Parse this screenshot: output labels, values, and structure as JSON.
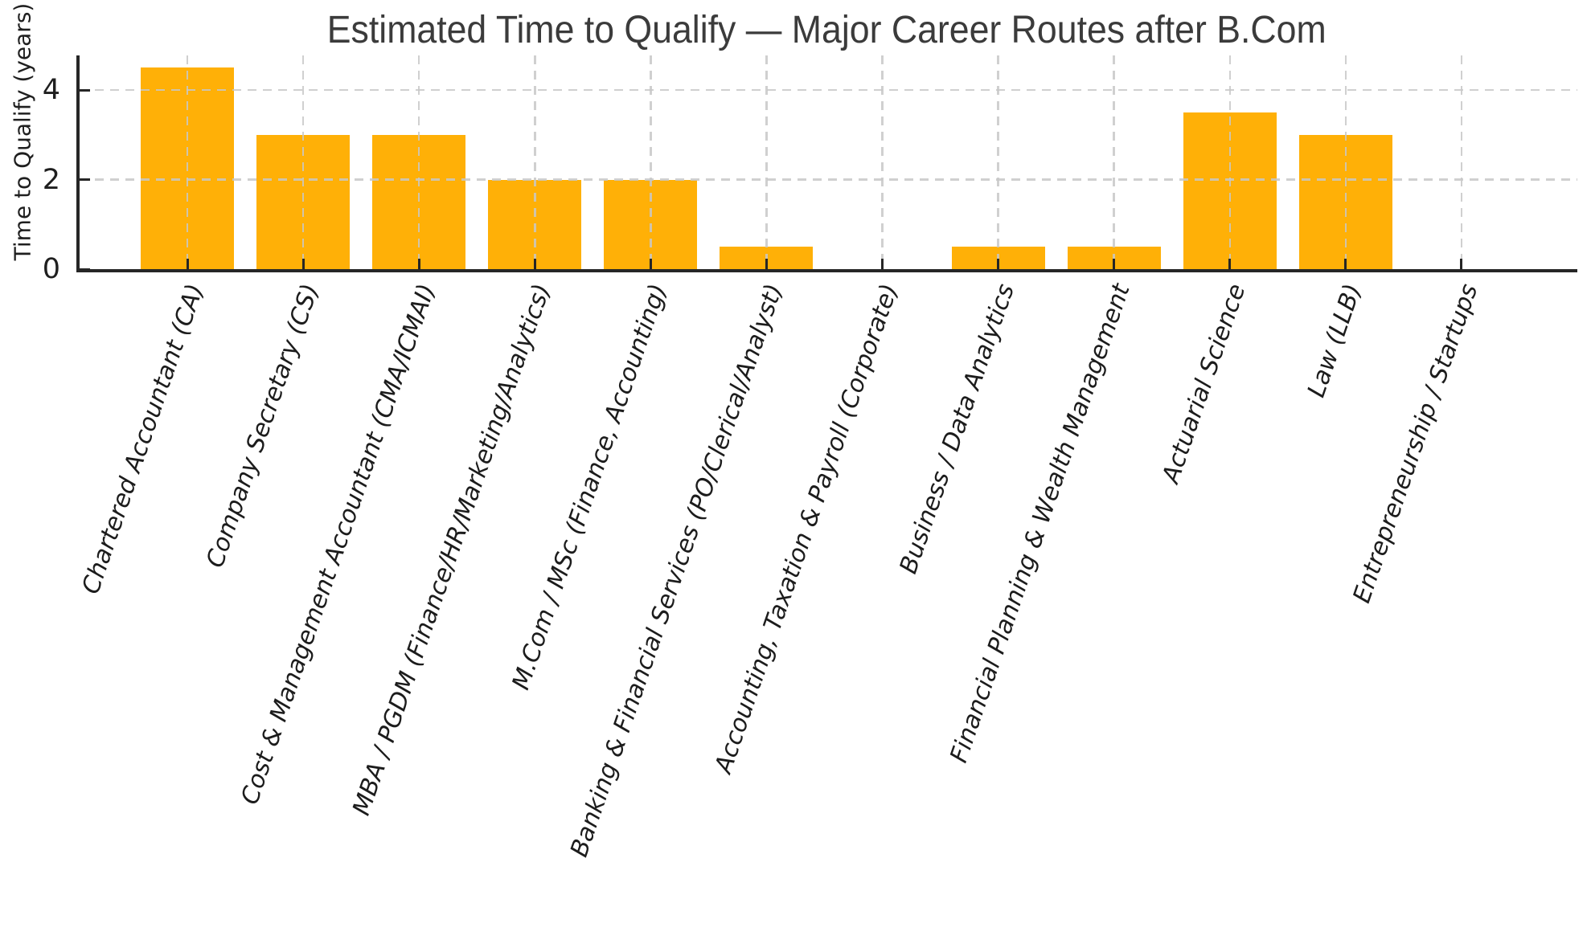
{
  "chart_data": {
    "type": "bar",
    "title": "Estimated Time to Qualify — Major Career Routes after B.Com",
    "ylabel": "Time to Qualify (years)",
    "xlabel": "",
    "categories": [
      "Chartered Accountant (CA)",
      "Company Secretary (CS)",
      "Cost & Management Accountant (CMA/ICMAI)",
      "MBA / PGDM (Finance/HR/Marketing/Analytics)",
      "M.Com / MSc (Finance, Accounting)",
      "Banking & Financial Services (PO/Clerical/Analyst)",
      "Accounting, Taxation & Payroll (Corporate)",
      "Business / Data Analytics",
      "Financial Planning & Wealth Management",
      "Actuarial Science",
      "Law (LLB)",
      "Entrepreneurship / Startups"
    ],
    "values": [
      4.5,
      3,
      3,
      2,
      2,
      0.5,
      0,
      0.5,
      0.5,
      3.5,
      3,
      0
    ],
    "yticks": [
      0,
      2,
      4
    ],
    "ylim": [
      0,
      4.77
    ],
    "grid": "dashed",
    "legend": "none",
    "bar_color": "#FFB007",
    "grid_color": "#c8c8c8",
    "axis_color": "#262626",
    "title_color": "#3b3b3b",
    "tick_label_style": "italic",
    "x_label_rotation_deg": 71
  }
}
